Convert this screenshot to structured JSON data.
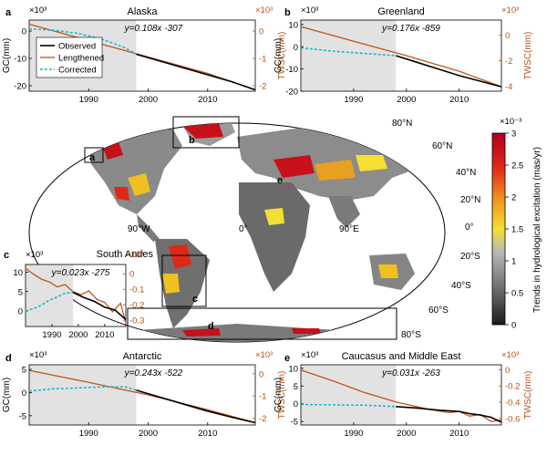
{
  "colors": {
    "observed": "#000000",
    "lengthened": "#c0541a",
    "corrected": "#14b8c8",
    "shade": "#e2e2e2",
    "right_axis": "#b5501b"
  },
  "legend": [
    "Observed",
    "Lengthened",
    "Corrected"
  ],
  "colorbar": {
    "label": "Trends in hydrological excitation (mas/yr)",
    "exponent": "×10⁻³",
    "ticks": [
      "3",
      "2.5",
      "2",
      "1.5",
      "1",
      "0.5",
      "0"
    ],
    "stops": [
      "#b0001a",
      "#e02818",
      "#f08a20",
      "#f5df30",
      "#b8b8b8",
      "#6a6a6a",
      "#1a1a1a"
    ]
  },
  "map": {
    "lat_labels": [
      "80°N",
      "60°N",
      "40°N",
      "20°N",
      "0°",
      "20°S",
      "40°S",
      "60°S",
      "80°S"
    ],
    "lon_labels": [
      "90°W",
      "0°",
      "90°E"
    ],
    "box_labels": [
      "a",
      "b",
      "c",
      "d",
      "e"
    ]
  },
  "chart_data": [
    {
      "id": "a",
      "type": "line",
      "title": "Alaska",
      "ylabel": "GC(mm)",
      "y2label": "TWSC(mm)",
      "equation": "y=0.108x -307",
      "left_exponent": "×10³",
      "right_exponent": "×10³",
      "xlim": [
        1980,
        2018
      ],
      "ylim": [
        -22,
        4
      ],
      "y2lim": [
        -2.2,
        0.4
      ],
      "xticks": [
        "1990",
        "2000",
        "2010"
      ],
      "yticks": [
        "0",
        "-10",
        "-20"
      ],
      "y2ticks": [
        "0",
        "-1",
        "-2"
      ],
      "shade_until": 1998,
      "series": [
        {
          "name": "Observed",
          "x": [
            1998,
            2002,
            2006,
            2010,
            2014,
            2018
          ],
          "y": [
            -8.5,
            -11,
            -13.5,
            -16,
            -18.5,
            -21.5
          ]
        },
        {
          "name": "Lengthened",
          "x": [
            1980,
            1990,
            2000,
            2010,
            2018
          ],
          "y": [
            2.5,
            -3.5,
            -9.5,
            -15.5,
            -21.5
          ]
        },
        {
          "name": "Corrected",
          "x": [
            1980,
            1984,
            1988,
            1992,
            1996,
            1998
          ],
          "y": [
            0.8,
            0.3,
            -0.8,
            -2.8,
            -6,
            -8.5
          ]
        }
      ]
    },
    {
      "id": "b",
      "type": "line",
      "title": "Greenland",
      "ylabel": "GC(mm)",
      "y2label": "TWSC(mm)",
      "equation": "y=0.176x -859",
      "left_exponent": "×10³",
      "right_exponent": "×10³",
      "xlim": [
        1980,
        2018
      ],
      "ylim": [
        -20,
        12
      ],
      "y2lim": [
        -4.4,
        1.2
      ],
      "xticks": [
        "1990",
        "2000",
        "2010"
      ],
      "yticks": [
        "10",
        "0",
        "-10",
        "-20"
      ],
      "y2ticks": [
        "0",
        "-2",
        "-4"
      ],
      "shade_until": 1998,
      "series": [
        {
          "name": "Observed",
          "x": [
            1998,
            2002,
            2006,
            2010,
            2014,
            2018
          ],
          "y": [
            -4,
            -7,
            -10,
            -13,
            -15.5,
            -18
          ]
        },
        {
          "name": "Lengthened",
          "x": [
            1980,
            1990,
            2000,
            2010,
            2018
          ],
          "y": [
            9,
            2.5,
            -4,
            -11,
            -18
          ]
        },
        {
          "name": "Corrected",
          "x": [
            1980,
            1986,
            1992,
            1998
          ],
          "y": [
            -0.5,
            -2,
            -3,
            -4
          ]
        }
      ]
    },
    {
      "id": "c",
      "type": "line",
      "title": "South Andes",
      "equation": "y=0.023x -275",
      "left_exponent": "×10³",
      "right_exponent": "×10³",
      "xlim": [
        1980,
        2018
      ],
      "ylim": [
        -4,
        12
      ],
      "y2lim": [
        -0.34,
        0.06
      ],
      "xticks": [
        "1990",
        "2000",
        "2010"
      ],
      "yticks": [
        "10",
        "5",
        "0"
      ],
      "y2ticks": [
        "0",
        "-0.1",
        "-0.2",
        "-0.3"
      ],
      "shade_until": 1998,
      "series": [
        {
          "name": "Observed",
          "x": [
            1998,
            2002,
            2006,
            2010,
            2014,
            2018
          ],
          "y": [
            4.8,
            3.5,
            2.5,
            1.0,
            0.2,
            -2.2
          ]
        },
        {
          "name": "Lengthened",
          "x": [
            1980,
            1983,
            1986,
            1989,
            1992,
            1995,
            1998,
            2001,
            2004,
            2007,
            2010,
            2013,
            2016,
            2018
          ],
          "y": [
            11,
            9.5,
            8.2,
            7.5,
            6.2,
            6.8,
            5.0,
            4.2,
            5.2,
            3.0,
            2.2,
            -0.2,
            2.0,
            -3.0
          ]
        },
        {
          "name": "Corrected",
          "x": [
            1980,
            1983,
            1986,
            1989,
            1992,
            1995,
            1998
          ],
          "y": [
            0,
            0.6,
            1.5,
            2.8,
            3.6,
            4.6,
            4.8
          ]
        }
      ]
    },
    {
      "id": "d",
      "type": "line",
      "title": "Antarctic",
      "ylabel": "GC(mm)",
      "y2label": "TWSC(mm)",
      "equation": "y=0.243x -522",
      "left_exponent": "×10³",
      "right_exponent": "×10³",
      "xlim": [
        1980,
        2018
      ],
      "ylim": [
        -7,
        6
      ],
      "y2lim": [
        -2.3,
        0.4
      ],
      "xticks": [
        "1990",
        "2000",
        "2010"
      ],
      "yticks": [
        "5",
        "0",
        "-5"
      ],
      "y2ticks": [
        "0",
        "-1",
        "-2"
      ],
      "shade_until": 1998,
      "series": [
        {
          "name": "Observed",
          "x": [
            1998,
            2002,
            2006,
            2010,
            2014,
            2018
          ],
          "y": [
            0.5,
            -1.0,
            -2.5,
            -4.0,
            -5.3,
            -6.5
          ]
        },
        {
          "name": "Lengthened",
          "x": [
            1980,
            1990,
            2000,
            2010,
            2018
          ],
          "y": [
            4.8,
            2.2,
            -0.5,
            -3.7,
            -6.5
          ]
        },
        {
          "name": "Corrected",
          "x": [
            1980,
            1984,
            1988,
            1992,
            1996,
            1998
          ],
          "y": [
            0.3,
            0.8,
            1.0,
            1.2,
            1.3,
            0.5
          ]
        }
      ]
    },
    {
      "id": "e",
      "type": "line",
      "title": "Caucasus and Middle East",
      "ylabel": "GC(mm)",
      "y2label": "TWSC(mm)",
      "equation": "y=0.031x -263",
      "left_exponent": "×10³",
      "right_exponent": "×10³",
      "xlim": [
        1980,
        2018
      ],
      "ylim": [
        -6,
        11
      ],
      "y2lim": [
        -0.68,
        0.06
      ],
      "xticks": [
        "1990",
        "2000",
        "2010"
      ],
      "yticks": [
        "10",
        "5",
        "0",
        "-5"
      ],
      "y2ticks": [
        "0",
        "-0.2",
        "-0.4",
        "-0.6"
      ],
      "shade_until": 1998,
      "series": [
        {
          "name": "Observed",
          "x": [
            1998,
            2002,
            2006,
            2010,
            2012,
            2014,
            2016,
            2018
          ],
          "y": [
            -0.8,
            -1.2,
            -1.8,
            -2.2,
            -2.8,
            -3.2,
            -3.8,
            -5.2
          ]
        },
        {
          "name": "Lengthened",
          "x": [
            1980,
            1986,
            1992,
            1998,
            2004,
            2008,
            2010,
            2012,
            2014,
            2016,
            2018
          ],
          "y": [
            9.5,
            6.5,
            3.2,
            0.5,
            -1.5,
            -2.5,
            -2.2,
            -3.5,
            -3.0,
            -5.0,
            -4.6
          ]
        },
        {
          "name": "Corrected",
          "x": [
            1980,
            1986,
            1992,
            1998
          ],
          "y": [
            -0.2,
            -0.3,
            -0.4,
            -0.8
          ]
        }
      ]
    }
  ]
}
